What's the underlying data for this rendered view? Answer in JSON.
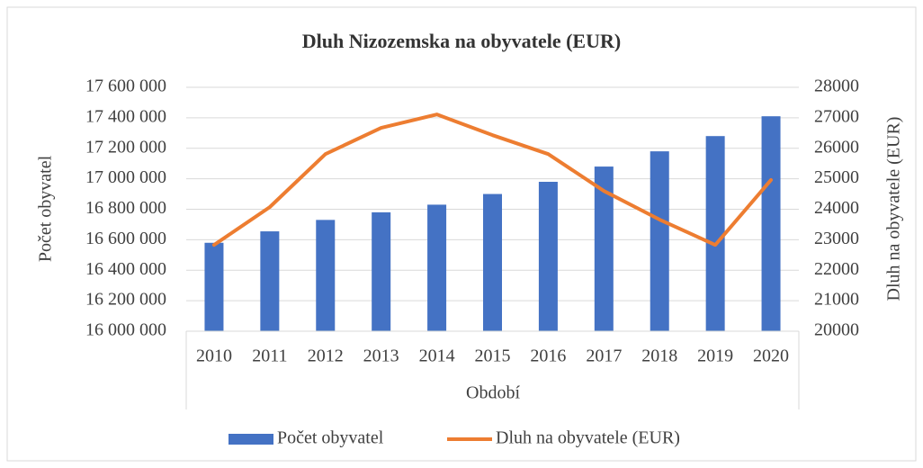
{
  "chart_data": {
    "type": "bar_line",
    "title": "Dluh Nizozemska na obyvatele (EUR)",
    "x_label": "Období",
    "y_label": "Počet obyvatel",
    "y2_label": "Dluh na obyvatele (EUR)",
    "categories": [
      "2010",
      "2011",
      "2012",
      "2013",
      "2014",
      "2015",
      "2016",
      "2017",
      "2018",
      "2019",
      "2020"
    ],
    "series": [
      {
        "name": "Počet obyvatel",
        "type": "bar",
        "color": "#4472c4",
        "values": [
          16580000,
          16655000,
          16730000,
          16780000,
          16830000,
          16900000,
          16980000,
          17080000,
          17180000,
          17280000,
          17410000
        ]
      },
      {
        "name": "Dluh na obyvatele (EUR)",
        "type": "line",
        "axis": "y2",
        "color": "#ed7d31",
        "values": [
          22830,
          24070,
          25810,
          26670,
          27110,
          26430,
          25810,
          24600,
          23660,
          22830,
          24960
        ]
      }
    ],
    "ylim": [
      16000000,
      17600000
    ],
    "yticks": [
      {
        "value": 16000000,
        "label": "16 000 000"
      },
      {
        "value": 16200000,
        "label": "16 200 000"
      },
      {
        "value": 16400000,
        "label": "16 400 000"
      },
      {
        "value": 16600000,
        "label": "16 600 000"
      },
      {
        "value": 16800000,
        "label": "16 800 000"
      },
      {
        "value": 17000000,
        "label": "17 000 000"
      },
      {
        "value": 17200000,
        "label": "17 200 000"
      },
      {
        "value": 17400000,
        "label": "17 400 000"
      },
      {
        "value": 17600000,
        "label": "17 600 000"
      }
    ],
    "y2lim": [
      20000,
      28000
    ],
    "y2ticks": [
      20000,
      21000,
      22000,
      23000,
      24000,
      25000,
      26000,
      27000,
      28000
    ],
    "grid": true,
    "legend": "bottom"
  }
}
